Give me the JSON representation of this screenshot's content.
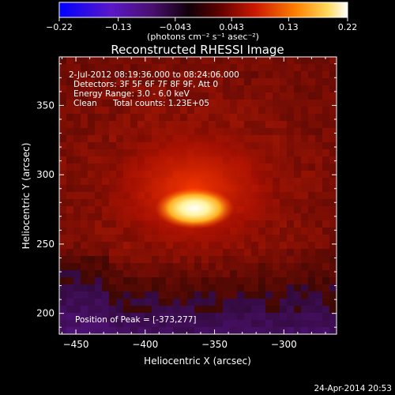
{
  "chart_data": {
    "type": "heatmap",
    "title": "Reconstructed RHESSI Image",
    "xlabel": "Heliocentric X (arcsec)",
    "ylabel": "Heliocentric Y (arcsec)",
    "xlim": [
      -462,
      -262
    ],
    "ylim": [
      185,
      385
    ],
    "x_ticks": [
      -450,
      -400,
      -350,
      -300
    ],
    "y_ticks": [
      200,
      250,
      300,
      350
    ],
    "x_tick_labels": [
      "−450",
      "−400",
      "−350",
      "−300"
    ],
    "y_tick_labels": [
      "200",
      "250",
      "300",
      "350"
    ],
    "colorbar": {
      "range": [
        -0.22,
        0.22
      ],
      "ticks": [
        -0.22,
        -0.13,
        -0.043,
        0.043,
        0.13,
        0.22
      ],
      "tick_labels": [
        "−0.22",
        "−0.13",
        "−0.043",
        "0.043",
        "0.13",
        "0.22"
      ],
      "unit_label": "(photons cm⁻² s⁻¹ asec⁻²)",
      "colors": [
        "#0000ff",
        "#6a1fb0",
        "#000000",
        "#cc0000",
        "#ff8800",
        "#ffffaa",
        "#ffffff"
      ]
    },
    "annotations": {
      "time_range": "2-Jul-2012 08:19:36.000 to 08:24:06.000",
      "detectors": "Detectors: 3F 5F 6F 7F 8F 9F, Att 0",
      "energy_range": "Energy Range: 3.0 - 6.0 keV",
      "method": "Clean",
      "total_counts": "Total counts: 1.23E+05",
      "peak_position": "Position of Peak = [-373,277]"
    },
    "peak": {
      "x": -373,
      "y": 277,
      "value": 0.22
    },
    "grid": false
  },
  "footer": {
    "timestamp": "24-Apr-2014 20:53"
  }
}
